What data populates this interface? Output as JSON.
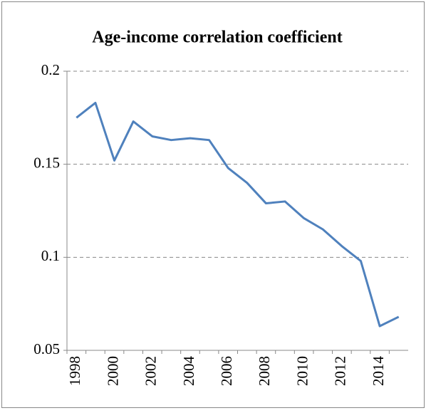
{
  "chart_data": {
    "type": "line",
    "title": "Age-income correlation coefficient",
    "categories": [
      "1998",
      null,
      "2000",
      null,
      "2002",
      null,
      "2004",
      null,
      "2006",
      null,
      "2008",
      null,
      "2010",
      null,
      "2012",
      null,
      "2014",
      null
    ],
    "series": [
      {
        "name": "Age-income correlation coefficient",
        "color": "#4f81bd",
        "values": [
          0.175,
          0.183,
          0.152,
          0.173,
          0.165,
          0.163,
          0.164,
          0.163,
          0.148,
          0.14,
          0.129,
          0.13,
          0.121,
          0.115,
          0.106,
          0.098,
          0.063,
          0.068
        ]
      }
    ],
    "ylim": [
      0.05,
      0.2
    ],
    "yticks": [
      0.05,
      0.1,
      0.15,
      0.2
    ],
    "grid": true
  }
}
